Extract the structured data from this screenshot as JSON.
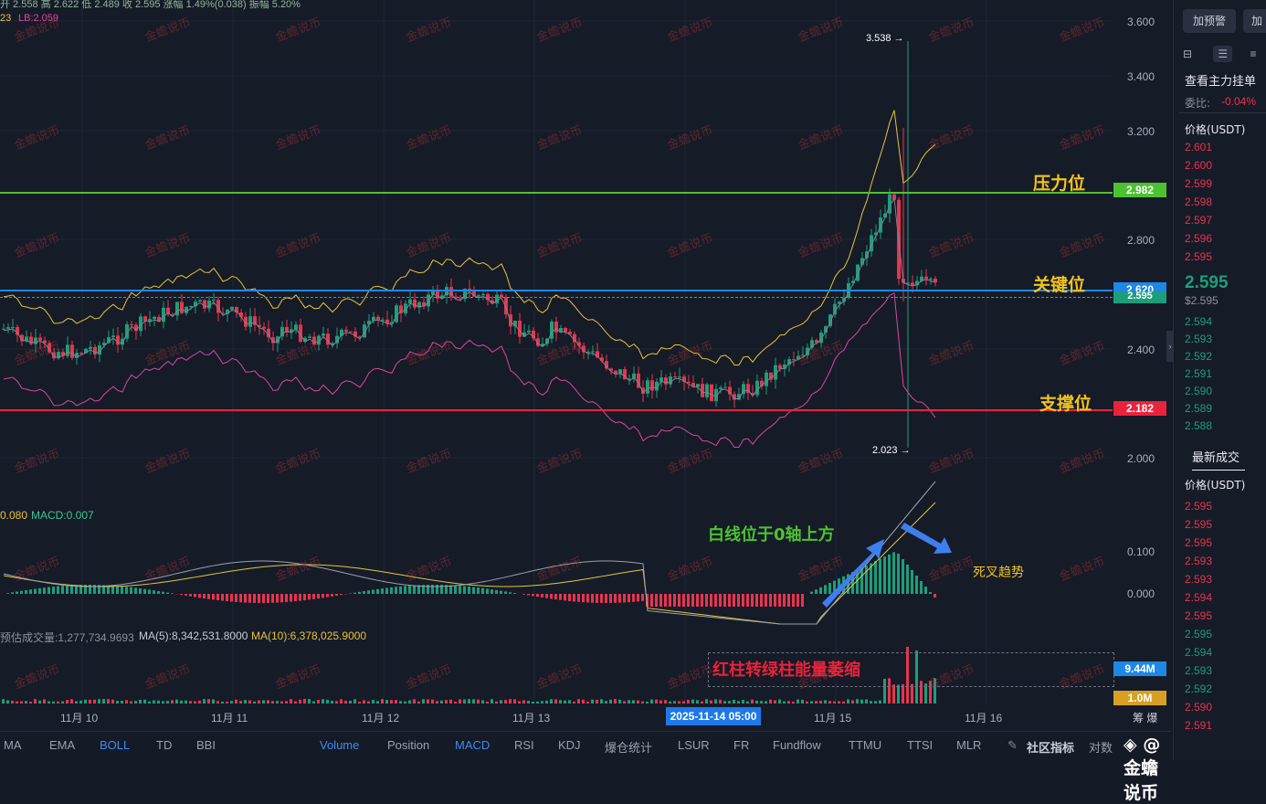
{
  "header": {
    "ohlc_text": "开 2.558  高 2.622  低 2.489  收 2.595  涨幅 1.49%(0.038)  振幅 5.20%",
    "boll_text_prefix": "23",
    "boll_lb": "LB:2.059"
  },
  "price_ticks": [
    "3.600",
    "3.400",
    "3.200",
    "2.800",
    "2.400",
    "2.000"
  ],
  "levels": {
    "resistance": {
      "label": "压力位",
      "value": "2.982",
      "color": "#4cc232"
    },
    "key": {
      "label": "关键位",
      "value": "2.620",
      "color": "#1e88e5"
    },
    "support": {
      "label": "支撑位",
      "value": "2.182",
      "color": "#e8233b"
    },
    "current": {
      "value": "2.595",
      "color": "#1d9e7a"
    }
  },
  "annotations": {
    "high": "3.538 →",
    "low": "2.023 →",
    "white_line_note": "白线位于0轴上方",
    "death_cross": "死叉趋势",
    "volume_note": "红柱转绿柱能量萎缩"
  },
  "macd": {
    "label_left": "0.080",
    "label_macd": "MACD:0.007",
    "ticks": [
      "0.100",
      "0.000"
    ]
  },
  "volume": {
    "estimate": "预估成交量:1,277,734.9693",
    "ma5": "MA(5):8,342,531.8000",
    "ma10": "MA(10):6,378,025.9000",
    "tag_high": "9.44M",
    "tag_low": "1.0M"
  },
  "time_axis": [
    "11月 10",
    "11月 11",
    "11月 12",
    "11月 13",
    "11月 15",
    "11月 16"
  ],
  "time_badge": "2025-11-14 05:00",
  "time_axis_right": "筹  爆",
  "indicator_tabs_left": [
    "MA",
    "EMA",
    "BOLL",
    "TD",
    "BBI"
  ],
  "indicator_tabs_right": [
    "Volume",
    "Position",
    "MACD",
    "RSI",
    "KDJ",
    "爆仓统计",
    "LSUR",
    "FR",
    "Fundflow",
    "TTMU",
    "TTSI",
    "MLR"
  ],
  "community": "社区指标",
  "compare": "对数",
  "brand": "@金蟾说币",
  "watermark": "金蟾说币",
  "sidebar": {
    "btn1": "加预警",
    "btn2": "加",
    "title": "查看主力挂单",
    "ratio_label": "委比:",
    "ratio_value": "-0.04%",
    "price_header": "价格(USDT)",
    "asks": [
      "2.601",
      "2.600",
      "2.599",
      "2.598",
      "2.597",
      "2.596",
      "2.595"
    ],
    "last_price": "2.595",
    "last_price_sub": "$2.595",
    "bids": [
      "2.594",
      "2.593",
      "2.592",
      "2.591",
      "2.590",
      "2.589",
      "2.588"
    ],
    "trades_title": "最新成交",
    "trades_header": "价格(USDT)",
    "trades": [
      {
        "p": "2.595",
        "c": "#e8344e"
      },
      {
        "p": "2.595",
        "c": "#e8344e"
      },
      {
        "p": "2.595",
        "c": "#e8344e"
      },
      {
        "p": "2.593",
        "c": "#e8344e"
      },
      {
        "p": "2.593",
        "c": "#e8344e"
      },
      {
        "p": "2.594",
        "c": "#e8344e"
      },
      {
        "p": "2.595",
        "c": "#e8344e"
      },
      {
        "p": "2.595",
        "c": "#1d9e7a"
      },
      {
        "p": "2.594",
        "c": "#1d9e7a"
      },
      {
        "p": "2.593",
        "c": "#1d9e7a"
      },
      {
        "p": "2.592",
        "c": "#1d9e7a"
      },
      {
        "p": "2.590",
        "c": "#e8344e"
      },
      {
        "p": "2.591",
        "c": "#e8344e"
      }
    ]
  }
}
